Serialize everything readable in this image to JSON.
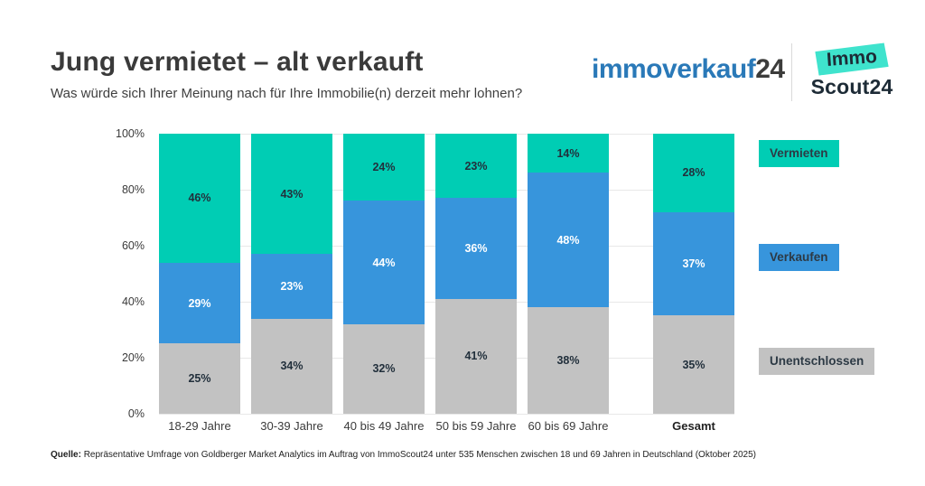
{
  "header": {
    "title": "Jung vermietet – alt verkauft",
    "subtitle": "Was würde sich Ihrer Meinung nach für Ihre Immobilie(n) derzeit mehr lohnen?"
  },
  "logos": {
    "immoverkauf": {
      "word": "immoverkauf",
      "suffix": "24",
      "word_color": "#2a79b8",
      "suffix_color": "#3c3c3b"
    },
    "immoscout": {
      "line1": "Immo",
      "line2": "Scout24",
      "sticker_color": "#3fe3cd",
      "text_color": "#1d2b36"
    }
  },
  "chart_data": {
    "type": "bar",
    "stacked": true,
    "title": "Jung vermietet – alt verkauft",
    "xlabel": "",
    "ylabel": "",
    "ylim": [
      0,
      100
    ],
    "grid": true,
    "legend_position": "right",
    "categories": [
      "18-29 Jahre",
      "30-39 Jahre",
      "40 bis 49 Jahre",
      "50 bis 59 Jahre",
      "60 bis 69 Jahre",
      "Gesamt"
    ],
    "last_category_separated": true,
    "last_category_bold": true,
    "series": [
      {
        "name": "Vermieten",
        "color": "#00cdb4",
        "label_color": "#22303c",
        "values": [
          46,
          43,
          24,
          23,
          14,
          28
        ]
      },
      {
        "name": "Verkaufen",
        "color": "#3795dc",
        "label_color": "#ffffff",
        "values": [
          29,
          23,
          44,
          36,
          48,
          37
        ]
      },
      {
        "name": "Unentschlossen",
        "color": "#c2c2c2",
        "label_color": "#22303c",
        "values": [
          25,
          34,
          32,
          41,
          38,
          35
        ]
      }
    ],
    "y_ticks": [
      "100%",
      "80%",
      "60%",
      "40%",
      "20%",
      "0%"
    ]
  },
  "footer": {
    "source_label": "Quelle:",
    "source_text": "Repräsentative Umfrage von Goldberger Market Analytics im Auftrag von ImmoScout24 unter 535 Menschen zwischen 18 und 69 Jahren in Deutschland (Oktober 2025)"
  }
}
